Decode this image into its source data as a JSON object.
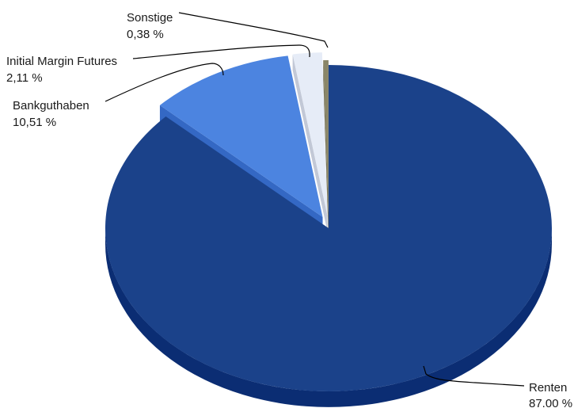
{
  "chart_data": {
    "type": "pie",
    "title": "",
    "style": "3d-exploded",
    "slices": [
      {
        "label": "Renten",
        "value_text": "87.00 %",
        "value": 87.0,
        "color": "#1b428a",
        "side_color": "#0b2d73"
      },
      {
        "label": "Bankguthaben",
        "value_text": "10,51 %",
        "value": 10.51,
        "color": "#4c84e0",
        "side_color": "#3468c4"
      },
      {
        "label": "Initial Margin Futures",
        "value_text": "2,11 %",
        "value": 2.11,
        "color": "#e6ecf7",
        "side_color": "#c2c8d6"
      },
      {
        "label": "Sonstige",
        "value_text": "0,38 %",
        "value": 0.38,
        "color": "#8a8668",
        "side_color": "#5f5c45"
      }
    ]
  }
}
